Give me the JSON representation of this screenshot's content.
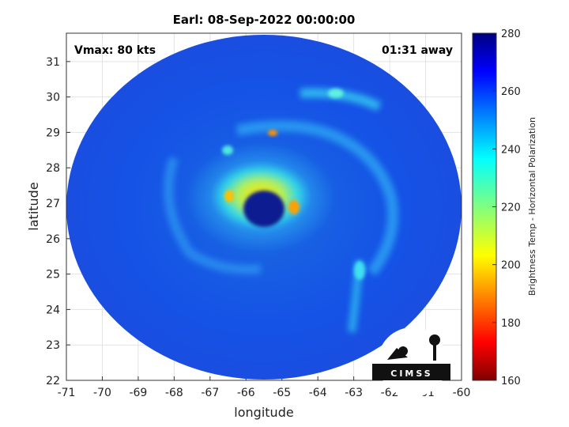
{
  "chart_data": {
    "type": "heatmap",
    "title": "Earl: 08-Sep-2022 00:00:00",
    "xlabel": "longitude",
    "ylabel": "latitude",
    "xlim": [
      -71,
      -60
    ],
    "ylim": [
      22,
      31.8
    ],
    "x_ticks": [
      "-71",
      "-70",
      "-69",
      "-68",
      "-67",
      "-66",
      "-65",
      "-64",
      "-63",
      "-62",
      "-61",
      "-60"
    ],
    "y_ticks": [
      "22",
      "23",
      "24",
      "25",
      "26",
      "27",
      "28",
      "29",
      "30",
      "31"
    ],
    "grid": true,
    "colorbar": {
      "label": "Brightness Temp - Horizontal Polarization",
      "range": [
        160,
        280
      ],
      "ticks": [
        "160",
        "180",
        "200",
        "220",
        "240",
        "260",
        "280"
      ],
      "colormap": "jet"
    },
    "annotations": {
      "vmax": "Vmax: 80 kts",
      "time_offset": "01:31 away"
    },
    "logo_text": "CIMSS"
  }
}
